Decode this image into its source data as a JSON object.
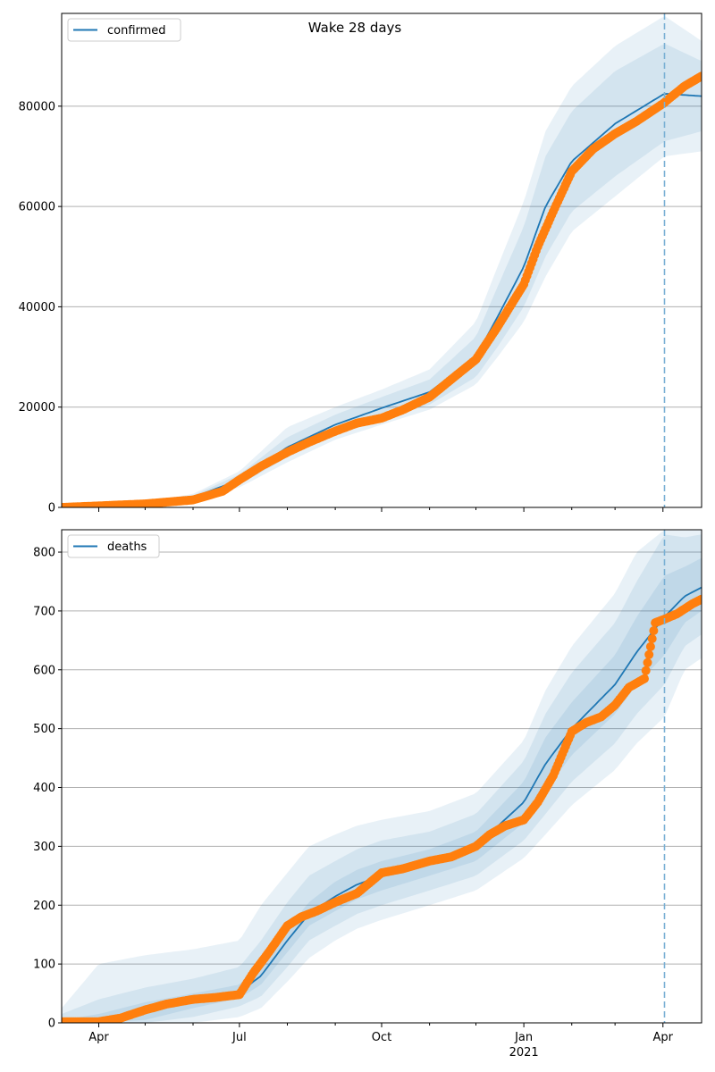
{
  "figure": {
    "title": "Wake 28 days"
  },
  "chart_data": [
    {
      "type": "line",
      "legend": {
        "label": "confirmed",
        "placement": "top-left"
      },
      "colors": {
        "line": "#1f77b4",
        "band": "#1f77b4",
        "observed": "#ff7f0e",
        "grid": "#b0b0b0",
        "cutoff": "#7ab0d4"
      },
      "grid": {
        "y": true,
        "x": false
      },
      "xlim": [
        "2020-03-08",
        "2021-04-26"
      ],
      "ylim": [
        0,
        98500
      ],
      "y_ticks": [
        0,
        20000,
        40000,
        60000,
        80000
      ],
      "cutoff_date": "2021-04-02",
      "fit": {
        "x": [
          "2020-03-08",
          "2020-04-01",
          "2020-05-01",
          "2020-06-01",
          "2020-07-01",
          "2020-08-01",
          "2020-09-01",
          "2020-10-01",
          "2020-11-01",
          "2020-12-01",
          "2020-12-15",
          "2021-01-01",
          "2021-01-15",
          "2021-02-01",
          "2021-03-01",
          "2021-04-02",
          "2021-04-26"
        ],
        "y": [
          0,
          300,
          800,
          2000,
          5500,
          12000,
          16500,
          19800,
          23000,
          30000,
          38000,
          48000,
          60000,
          69000,
          76500,
          82500,
          82000
        ],
        "bands": [
          {
            "lower": [
              0,
              200,
              600,
              1600,
              4500,
              10000,
              14500,
              17500,
              20500,
              26000,
              32000,
              40000,
              50000,
              59000,
              66000,
              73000,
              75000
            ],
            "upper": [
              0,
              400,
              1000,
              2400,
              6600,
              14000,
              18500,
              22000,
              25500,
              34000,
              44000,
              56000,
              70000,
              79000,
              87000,
              92500,
              89000
            ]
          },
          {
            "lower": [
              0,
              150,
              500,
              1300,
              4000,
              9000,
              13500,
              16500,
              19500,
              24500,
              30000,
              37000,
              46000,
              55000,
              62000,
              70000,
              71000
            ],
            "upper": [
              0,
              450,
              1100,
              2700,
              7200,
              16000,
              20000,
              23500,
              27500,
              37000,
              48000,
              61000,
              75000,
              84000,
              92000,
              98000,
              93000
            ]
          }
        ]
      },
      "observed": {
        "x": [
          "2020-03-08",
          "2020-04-01",
          "2020-05-01",
          "2020-06-01",
          "2020-06-20",
          "2020-07-01",
          "2020-07-15",
          "2020-08-01",
          "2020-08-15",
          "2020-09-01",
          "2020-09-15",
          "2020-10-01",
          "2020-10-15",
          "2020-11-01",
          "2020-11-15",
          "2020-12-01",
          "2020-12-15",
          "2021-01-01",
          "2021-01-10",
          "2021-01-20",
          "2021-02-01",
          "2021-02-15",
          "2021-03-01",
          "2021-03-15",
          "2021-04-01",
          "2021-04-15",
          "2021-04-26"
        ],
        "y": [
          0,
          300,
          700,
          1500,
          3200,
          5500,
          8200,
          11000,
          13000,
          15200,
          16800,
          17800,
          19500,
          22000,
          25500,
          29500,
          36000,
          44500,
          52000,
          59000,
          67000,
          71500,
          74500,
          77000,
          80500,
          84000,
          86000
        ]
      }
    },
    {
      "type": "line",
      "legend": {
        "label": "deaths",
        "placement": "top-left"
      },
      "colors": {
        "line": "#1f77b4",
        "band": "#1f77b4",
        "observed": "#ff7f0e",
        "grid": "#b0b0b0",
        "cutoff": "#7ab0d4"
      },
      "grid": {
        "y": true,
        "x": false
      },
      "xlim": [
        "2020-03-08",
        "2021-04-26"
      ],
      "ylim": [
        0,
        838
      ],
      "y_ticks": [
        0,
        100,
        200,
        300,
        400,
        500,
        600,
        700,
        800
      ],
      "x_ticks": [
        {
          "date": "2020-04-01",
          "label": "Apr",
          "sub": ""
        },
        {
          "date": "2020-07-01",
          "label": "Jul",
          "sub": ""
        },
        {
          "date": "2020-10-01",
          "label": "Oct",
          "sub": ""
        },
        {
          "date": "2021-01-01",
          "label": "Jan",
          "sub": "2021"
        },
        {
          "date": "2021-04-01",
          "label": "Apr",
          "sub": ""
        }
      ],
      "cutoff_date": "2021-04-02",
      "fit": {
        "x": [
          "2020-03-08",
          "2020-04-01",
          "2020-05-01",
          "2020-06-01",
          "2020-07-01",
          "2020-07-15",
          "2020-08-01",
          "2020-08-15",
          "2020-09-01",
          "2020-09-15",
          "2020-10-01",
          "2020-11-01",
          "2020-12-01",
          "2021-01-01",
          "2021-01-15",
          "2021-02-01",
          "2021-03-01",
          "2021-03-15",
          "2021-04-02",
          "2021-04-15",
          "2021-04-26"
        ],
        "y": [
          0,
          3,
          20,
          38,
          52,
          80,
          140,
          185,
          215,
          235,
          250,
          272,
          300,
          375,
          440,
          500,
          575,
          630,
          690,
          725,
          740
        ],
        "bands": [
          {
            "lower": [
              0,
              0,
              5,
              25,
              42,
              65,
              120,
              165,
              190,
              210,
              225,
              250,
              275,
              340,
              395,
              455,
              525,
              575,
              625,
              680,
              700
            ],
            "upper": [
              5,
              15,
              35,
              50,
              65,
              100,
              160,
              205,
              240,
              260,
              275,
              295,
              325,
              410,
              485,
              545,
              625,
              690,
              760,
              775,
              790
            ]
          },
          {
            "lower": [
              0,
              0,
              0,
              10,
              28,
              45,
              95,
              140,
              165,
              185,
              200,
              225,
              250,
              310,
              355,
              410,
              475,
              525,
              575,
              640,
              660
            ],
            "upper": [
              15,
              40,
              60,
              75,
              95,
              140,
              205,
              250,
              275,
              295,
              310,
              325,
              355,
              445,
              525,
              595,
              680,
              750,
              830,
              825,
              830
            ]
          },
          {
            "lower": [
              0,
              0,
              0,
              0,
              10,
              25,
              70,
              110,
              140,
              160,
              175,
              200,
              225,
              280,
              320,
              370,
              430,
              475,
              520,
              600,
              620
            ],
            "upper": [
              25,
              100,
              115,
              125,
              140,
              200,
              255,
              300,
              320,
              335,
              345,
              360,
              390,
              480,
              565,
              640,
              730,
              800,
              838,
              838,
              838
            ]
          }
        ]
      },
      "observed": {
        "x": [
          "2020-03-08",
          "2020-04-01",
          "2020-04-15",
          "2020-05-01",
          "2020-05-15",
          "2020-06-01",
          "2020-06-15",
          "2020-07-01",
          "2020-07-10",
          "2020-07-20",
          "2020-08-01",
          "2020-08-10",
          "2020-08-20",
          "2020-09-01",
          "2020-09-15",
          "2020-10-01",
          "2020-10-15",
          "2020-11-01",
          "2020-11-15",
          "2020-12-01",
          "2020-12-10",
          "2020-12-20",
          "2021-01-01",
          "2021-01-10",
          "2021-01-20",
          "2021-02-01",
          "2021-02-10",
          "2021-02-20",
          "2021-03-01",
          "2021-03-10",
          "2021-03-20",
          "2021-03-27",
          "2021-04-01",
          "2021-04-10",
          "2021-04-20",
          "2021-04-26"
        ],
        "y": [
          2,
          2,
          8,
          22,
          32,
          40,
          43,
          48,
          85,
          120,
          165,
          180,
          190,
          205,
          220,
          255,
          262,
          275,
          282,
          300,
          320,
          335,
          345,
          375,
          420,
          495,
          510,
          520,
          540,
          570,
          585,
          680,
          685,
          695,
          712,
          720
        ]
      }
    }
  ]
}
